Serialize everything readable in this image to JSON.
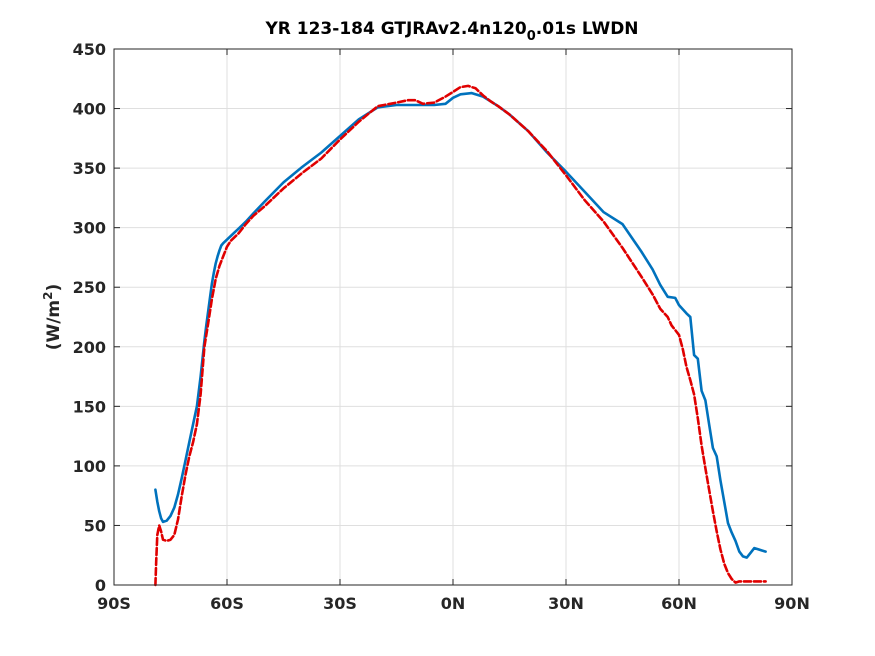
{
  "chart_data": {
    "type": "line",
    "title_main": "YR 123-184 GTJRAv2.4n120",
    "title_sub": "0",
    "title_tail": ".01s LWDN",
    "ylabel_main": "(W/m",
    "ylabel_sup": "2",
    "ylabel_tail": ")",
    "xlim": [
      -90,
      90
    ],
    "ylim": [
      0,
      450
    ],
    "xticks": [
      -90,
      -60,
      -30,
      0,
      30,
      60,
      90
    ],
    "xtick_labels": [
      "90S",
      "60S",
      "30S",
      "0N",
      "30N",
      "60N",
      "90N"
    ],
    "yticks": [
      0,
      50,
      100,
      150,
      200,
      250,
      300,
      350,
      400,
      450
    ],
    "ytick_labels": [
      "0",
      "50",
      "100",
      "150",
      "200",
      "250",
      "300",
      "350",
      "400",
      "450"
    ],
    "grid": true,
    "series": [
      {
        "color": "#0072bd",
        "style": "solid",
        "x": [
          -79,
          -78.5,
          -78,
          -77.5,
          -77,
          -76,
          -75,
          -74,
          -73,
          -72,
          -71,
          -70,
          -69,
          -68,
          -67,
          -66,
          -65.5,
          -65,
          -64.5,
          -64,
          -63.5,
          -63,
          -62.5,
          -62,
          -61.5,
          -61,
          -60,
          -59,
          -58,
          -57,
          -55,
          -53,
          -50,
          -45,
          -40,
          -35,
          -30,
          -25,
          -20,
          -15,
          -10,
          -5,
          -2,
          0,
          2,
          5,
          8,
          10,
          12,
          15,
          20,
          25,
          30,
          35,
          40,
          45,
          50,
          53,
          55,
          57,
          59,
          60,
          62,
          63,
          64,
          65,
          66,
          67,
          68,
          69,
          70,
          71,
          72,
          73,
          74,
          75,
          76,
          77,
          78,
          79,
          80,
          81,
          82,
          83,
          84,
          85
        ],
        "y": [
          80,
          70,
          62,
          56,
          53,
          54,
          58,
          65,
          76,
          90,
          105,
          120,
          135,
          150,
          175,
          205,
          218,
          230,
          242,
          253,
          262,
          270,
          276,
          281,
          285,
          287,
          290,
          293,
          296,
          299,
          305,
          312,
          322,
          338,
          351,
          363,
          377,
          391,
          401,
          403,
          403,
          403,
          404,
          409,
          412,
          413,
          410,
          406,
          402,
          395,
          381,
          363,
          347,
          330,
          313,
          303,
          280,
          265,
          252,
          242,
          241,
          235,
          228,
          225,
          193,
          190,
          163,
          155,
          135,
          115,
          108,
          88,
          70,
          52,
          44,
          37,
          28,
          24,
          23,
          27,
          31,
          30,
          29,
          28,
          27,
          27
        ],
        "render_until": 83
      },
      {
        "color": "#e00000",
        "style": "dashed",
        "x": [
          -79,
          -78.8,
          -78.5,
          -78,
          -77.5,
          -77,
          -76,
          -75,
          -74,
          -73,
          -72,
          -71,
          -70,
          -69,
          -68,
          -67,
          -66,
          -65,
          -64,
          -63,
          -62,
          -61,
          -60,
          -59,
          -57,
          -55,
          -53,
          -50,
          -45,
          -40,
          -35,
          -30,
          -25,
          -20,
          -15,
          -12,
          -10,
          -8,
          -5,
          -2,
          0,
          2,
          4,
          6,
          8,
          10,
          12,
          15,
          20,
          25,
          30,
          35,
          40,
          45,
          50,
          53,
          55,
          57,
          58,
          60,
          61,
          62,
          63,
          64,
          65,
          66,
          67,
          68,
          69,
          70,
          71,
          72,
          73,
          74,
          75,
          76,
          77,
          78,
          79,
          80,
          81,
          82,
          83
        ],
        "y": [
          0,
          20,
          42,
          50,
          45,
          38,
          37,
          38,
          42,
          55,
          75,
          93,
          108,
          120,
          135,
          160,
          200,
          220,
          240,
          257,
          268,
          276,
          284,
          289,
          295,
          303,
          310,
          318,
          333,
          346,
          358,
          374,
          389,
          402,
          405,
          407,
          407,
          404,
          405,
          410,
          414,
          418,
          419,
          417,
          411,
          406,
          402,
          395,
          381,
          364,
          344,
          323,
          305,
          283,
          259,
          244,
          232,
          225,
          218,
          210,
          198,
          183,
          172,
          160,
          140,
          117,
          98,
          80,
          62,
          45,
          30,
          18,
          10,
          5,
          2,
          3,
          3,
          3,
          3,
          3,
          3,
          3,
          3
        ],
        "render_until": 90
      }
    ]
  }
}
